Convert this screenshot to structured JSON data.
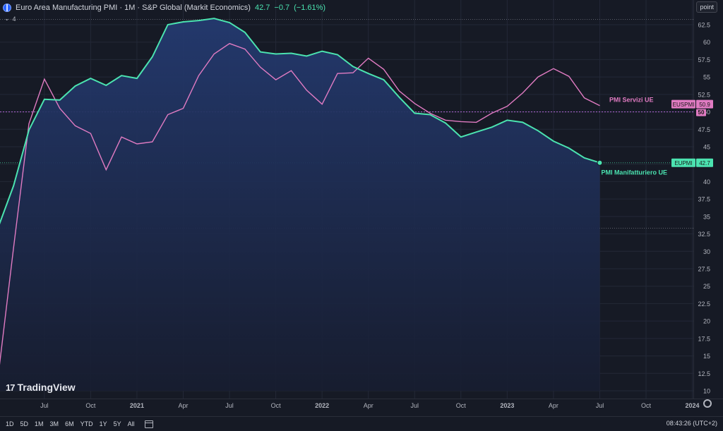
{
  "header": {
    "title": "Euro Area Manufacturing PMI · 1M · S&P Global (Markit Economics)",
    "last": "42.7",
    "change": "−0.7",
    "change_pct": "(−1.61%)",
    "indicator_count": "4",
    "indicator_count_icon": "chevron-down-icon",
    "scale_mode": "point"
  },
  "logo": {
    "mark": "17",
    "text": "TradingView"
  },
  "bottom": {
    "ranges": [
      "1D",
      "5D",
      "1M",
      "3M",
      "6M",
      "YTD",
      "1Y",
      "5Y",
      "All"
    ],
    "clock": "08:43:26 (UTC+2)"
  },
  "colors": {
    "background": "#161a25",
    "manufacturing": "#4be3b0",
    "services": "#e07bc2",
    "area_top": "#243a70",
    "area_bottom": "#171d30"
  },
  "chart_data": {
    "type": "line",
    "x_tick_labels": [
      "Jul",
      "Oct",
      "2021",
      "Apr",
      "Jul",
      "Oct",
      "2022",
      "Apr",
      "Jul",
      "Oct",
      "2023",
      "Apr",
      "Jul",
      "Oct",
      "2024"
    ],
    "y_ticks": [
      10,
      12.5,
      15,
      17.5,
      20,
      22.5,
      25,
      27.5,
      30,
      32.5,
      35,
      37.5,
      40,
      42.5,
      45,
      47.5,
      50,
      52.5,
      55,
      57.5,
      60,
      62.5
    ],
    "ylim": [
      10,
      62.5
    ],
    "dates": [
      "2020-04",
      "2020-05",
      "2020-06",
      "2020-07",
      "2020-08",
      "2020-09",
      "2020-10",
      "2020-11",
      "2020-12",
      "2021-01",
      "2021-02",
      "2021-03",
      "2021-04",
      "2021-05",
      "2021-06",
      "2021-07",
      "2021-08",
      "2021-09",
      "2021-10",
      "2021-11",
      "2021-12",
      "2022-01",
      "2022-02",
      "2022-03",
      "2022-04",
      "2022-05",
      "2022-06",
      "2022-07",
      "2022-08",
      "2022-09",
      "2022-10",
      "2022-11",
      "2022-12",
      "2023-01",
      "2023-02",
      "2023-03",
      "2023-04",
      "2023-05",
      "2023-06",
      "2023-07"
    ],
    "series": [
      {
        "name": "PMI Manifatturiero UE",
        "symbol": "EUPMI",
        "last_label": "42.7",
        "style": "area",
        "values": [
          33.4,
          39.4,
          47.4,
          51.8,
          51.7,
          53.7,
          54.8,
          53.8,
          55.2,
          54.8,
          57.9,
          62.5,
          62.9,
          63.1,
          63.4,
          62.8,
          61.4,
          58.6,
          58.3,
          58.4,
          58.0,
          58.7,
          58.2,
          56.5,
          55.5,
          54.6,
          52.1,
          49.8,
          49.6,
          48.4,
          46.4,
          47.1,
          47.8,
          48.8,
          48.5,
          47.3,
          45.8,
          44.8,
          43.4,
          42.7
        ]
      },
      {
        "name": "PMI Servizi UE",
        "symbol": "EUSPMI",
        "last_label": "50.9",
        "style": "line",
        "values": [
          12.0,
          30.5,
          48.3,
          54.7,
          50.5,
          48.0,
          46.9,
          41.7,
          46.4,
          45.4,
          45.7,
          49.6,
          50.5,
          55.2,
          58.3,
          59.8,
          59.0,
          56.4,
          54.6,
          55.9,
          53.1,
          51.1,
          55.5,
          55.6,
          57.7,
          56.1,
          53.0,
          51.2,
          49.8,
          48.8,
          48.6,
          48.5,
          49.8,
          50.8,
          52.7,
          55.0,
          56.2,
          55.1,
          52.0,
          50.9
        ]
      }
    ],
    "reference_lines": [
      {
        "value": 50,
        "label": "50"
      }
    ]
  }
}
